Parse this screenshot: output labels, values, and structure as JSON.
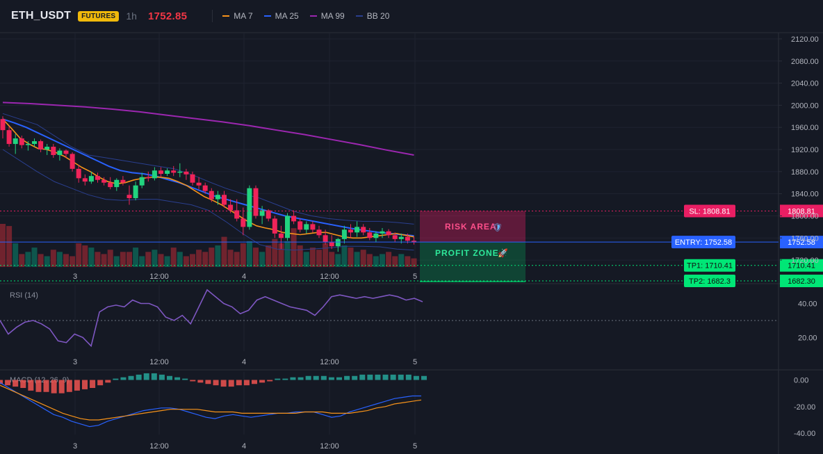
{
  "header": {
    "symbol": "ETH_USDT",
    "market_badge": "FUTURES",
    "timeframe": "1h",
    "last_price": "1752.85",
    "legend": [
      {
        "label": "MA 7",
        "color": "#f7931a"
      },
      {
        "label": "MA 25",
        "color": "#2962ff"
      },
      {
        "label": "MA 99",
        "color": "#9c27b0"
      },
      {
        "label": "BB 20",
        "color": "#2a3f8f"
      }
    ]
  },
  "colors": {
    "up": "#089981",
    "down": "#f23645",
    "up_bright": "#22ab94",
    "down_bright": "#f7525f",
    "rsi": "#7e57c2",
    "macd_line": "#2962ff",
    "signal_line": "#f7931a",
    "hist_up": "#26a69a",
    "hist_down": "#ef5350",
    "stop_loss": "#e91e63",
    "entry": "#2962ff",
    "take_profit": "#00e676"
  },
  "price_axis": {
    "ticks": [
      "2120.00",
      "2080.00",
      "2040.00",
      "2000.00",
      "1960.00",
      "1920.00",
      "1880.00",
      "1840.00",
      "1800.00",
      "1760.00",
      "1720.00"
    ],
    "scale": "linear",
    "grid": true
  },
  "time_axis": {
    "labels": [
      "3",
      "12:00",
      "4",
      "12:00",
      "5"
    ]
  },
  "trade_levels": {
    "stop_loss": {
      "label": "SL: 1808.81",
      "value": "1808.81",
      "price": 1808.81
    },
    "entry": {
      "label": "ENTRY: 1752.58",
      "value": "1752.58",
      "price": 1752.58
    },
    "tp1": {
      "label": "TP1: 1710.41",
      "value": "1710.41",
      "price": 1710.41
    },
    "tp2": {
      "label": "TP2: 1682.3",
      "value": "1682.30",
      "price": 1682.3
    },
    "risk_label": "RISK AREA",
    "profit_label": "PROFIT ZONE"
  },
  "rsi_pane": {
    "title": "RSI (14)",
    "ticks": [
      "40.00",
      "20.00"
    ],
    "values": [
      30,
      22,
      26,
      29,
      30,
      28,
      25,
      18,
      17,
      22,
      20,
      15,
      35,
      38,
      39,
      38,
      42,
      40,
      40,
      38,
      32,
      30,
      33,
      28,
      38,
      48,
      44,
      40,
      38,
      34,
      36,
      42,
      44,
      42,
      40,
      38,
      37,
      36,
      33,
      38,
      44,
      45,
      44,
      43,
      44,
      43,
      44,
      45,
      44,
      42,
      43,
      41
    ]
  },
  "macd_pane": {
    "title": "MACD (12, 26, 9)",
    "ticks": [
      "0.00",
      "-20.00",
      "-40.00"
    ],
    "histogram": [
      -3,
      -4,
      -5,
      -6,
      -8,
      -9,
      -9,
      -10,
      -10,
      -9,
      -8,
      -7,
      -6,
      -4,
      -2,
      1,
      2,
      3,
      4,
      5,
      5,
      4,
      3,
      2,
      1,
      -1,
      -2,
      -3,
      -4,
      -5,
      -5,
      -4,
      -4,
      -3,
      -2,
      -1,
      1,
      1,
      2,
      2,
      3,
      3,
      3,
      2,
      2,
      3,
      3,
      4,
      4,
      4,
      4,
      4,
      4,
      4,
      3,
      3
    ],
    "macd_line": [
      -2,
      -6,
      -10,
      -14,
      -18,
      -22,
      -26,
      -28,
      -31,
      -33,
      -35,
      -34,
      -31,
      -29,
      -27,
      -25,
      -23,
      -22,
      -21,
      -21,
      -22,
      -24,
      -26,
      -28,
      -29,
      -27,
      -26,
      -27,
      -28,
      -27,
      -26,
      -25,
      -25,
      -24,
      -24,
      -24,
      -26,
      -28,
      -27,
      -24,
      -22,
      -20,
      -18,
      -16,
      -14,
      -13,
      -12,
      -12
    ],
    "signal_line": [
      -4,
      -7,
      -10,
      -13,
      -16,
      -19,
      -22,
      -25,
      -27,
      -29,
      -30,
      -30,
      -29,
      -28,
      -27,
      -26,
      -25,
      -24,
      -23,
      -22,
      -22,
      -22,
      -22,
      -23,
      -24,
      -24,
      -24,
      -25,
      -25,
      -25,
      -25,
      -25,
      -25,
      -25,
      -24,
      -24,
      -24,
      -25,
      -25,
      -25,
      -24,
      -23,
      -21,
      -20,
      -18,
      -17,
      -16,
      -15
    ]
  },
  "chart_data": {
    "type": "candlestick",
    "candles": [
      [
        1975,
        1980,
        1940,
        1955
      ],
      [
        1955,
        1962,
        1925,
        1930
      ],
      [
        1930,
        1948,
        1912,
        1940
      ],
      [
        1940,
        1945,
        1922,
        1928
      ],
      [
        1928,
        1935,
        1918,
        1930
      ],
      [
        1930,
        1940,
        1925,
        1935
      ],
      [
        1935,
        1938,
        1915,
        1920
      ],
      [
        1920,
        1930,
        1910,
        1925
      ],
      [
        1925,
        1930,
        1905,
        1910
      ],
      [
        1910,
        1922,
        1900,
        1918
      ],
      [
        1918,
        1920,
        1905,
        1912
      ],
      [
        1912,
        1915,
        1880,
        1885
      ],
      [
        1885,
        1892,
        1860,
        1868
      ],
      [
        1868,
        1875,
        1855,
        1862
      ],
      [
        1862,
        1880,
        1858,
        1872
      ],
      [
        1872,
        1878,
        1860,
        1865
      ],
      [
        1865,
        1870,
        1855,
        1860
      ],
      [
        1860,
        1870,
        1848,
        1852
      ],
      [
        1852,
        1868,
        1845,
        1865
      ],
      [
        1865,
        1872,
        1855,
        1860
      ],
      [
        1838,
        1855,
        1820,
        1832
      ],
      [
        1832,
        1862,
        1828,
        1855
      ],
      [
        1855,
        1878,
        1850,
        1870
      ],
      [
        1870,
        1880,
        1862,
        1868
      ],
      [
        1868,
        1888,
        1864,
        1882
      ],
      [
        1882,
        1888,
        1870,
        1876
      ],
      [
        1876,
        1886,
        1872,
        1882
      ],
      [
        1882,
        1890,
        1872,
        1878
      ],
      [
        1878,
        1895,
        1870,
        1880
      ],
      [
        1880,
        1885,
        1865,
        1875
      ],
      [
        1875,
        1880,
        1855,
        1860
      ],
      [
        1860,
        1870,
        1848,
        1855
      ],
      [
        1855,
        1860,
        1840,
        1845
      ],
      [
        1845,
        1850,
        1825,
        1830
      ],
      [
        1830,
        1845,
        1820,
        1838
      ],
      [
        1838,
        1845,
        1815,
        1820
      ],
      [
        1820,
        1830,
        1805,
        1810
      ],
      [
        1810,
        1830,
        1790,
        1795
      ],
      [
        1795,
        1815,
        1765,
        1780
      ],
      [
        1780,
        1855,
        1775,
        1850
      ],
      [
        1850,
        1855,
        1795,
        1800
      ],
      [
        1800,
        1818,
        1785,
        1810
      ],
      [
        1810,
        1812,
        1790,
        1795
      ],
      [
        1795,
        1800,
        1760,
        1768
      ],
      [
        1768,
        1782,
        1740,
        1760
      ],
      [
        1760,
        1805,
        1755,
        1800
      ],
      [
        1800,
        1810,
        1785,
        1790
      ],
      [
        1790,
        1795,
        1770,
        1775
      ],
      [
        1775,
        1790,
        1768,
        1785
      ],
      [
        1785,
        1790,
        1770,
        1775
      ],
      [
        1775,
        1782,
        1760,
        1765
      ],
      [
        1765,
        1775,
        1748,
        1752
      ],
      [
        1752,
        1765,
        1740,
        1745
      ],
      [
        1745,
        1760,
        1735,
        1758
      ],
      [
        1758,
        1782,
        1750,
        1775
      ],
      [
        1775,
        1785,
        1760,
        1770
      ],
      [
        1770,
        1790,
        1762,
        1780
      ],
      [
        1780,
        1785,
        1765,
        1770
      ],
      [
        1770,
        1778,
        1756,
        1760
      ],
      [
        1760,
        1772,
        1752,
        1768
      ],
      [
        1768,
        1778,
        1760,
        1772
      ],
      [
        1772,
        1776,
        1760,
        1765
      ],
      [
        1765,
        1770,
        1752,
        1758
      ],
      [
        1758,
        1768,
        1750,
        1762
      ],
      [
        1762,
        1768,
        1750,
        1755
      ],
      [
        1755,
        1762,
        1748,
        1752
      ]
    ],
    "volume": [
      40,
      38,
      22,
      12,
      14,
      18,
      12,
      10,
      16,
      14,
      12,
      10,
      22,
      20,
      18,
      14,
      12,
      16,
      10,
      14,
      14,
      18,
      10,
      14,
      16,
      12,
      10,
      18,
      14,
      10,
      12,
      16,
      14,
      18,
      20,
      28,
      16,
      14,
      22,
      24,
      18,
      14,
      20,
      26,
      22,
      24,
      36,
      20,
      14,
      18,
      16,
      22,
      14,
      12,
      20,
      18,
      14,
      16,
      12,
      10,
      12,
      14,
      10,
      12,
      10,
      8
    ],
    "ma7": [
      1975,
      1958,
      1940,
      1930,
      1922,
      1920,
      1915,
      1908,
      1898,
      1888,
      1880,
      1870,
      1862,
      1858,
      1860,
      1865,
      1868,
      1870,
      1870,
      1868,
      1862,
      1855,
      1845,
      1835,
      1828,
      1820,
      1810,
      1800,
      1790,
      1782,
      1778,
      1775,
      1770,
      1768,
      1766,
      1768,
      1770,
      1770,
      1766,
      1762,
      1760,
      1760,
      1762,
      1764,
      1766,
      1768,
      1765,
      1762
    ],
    "ma25": [
      1975,
      1968,
      1960,
      1950,
      1940,
      1930,
      1920,
      1910,
      1900,
      1890,
      1882,
      1878,
      1876,
      1872,
      1866,
      1860,
      1852,
      1844,
      1836,
      1830,
      1824,
      1818,
      1812,
      1806,
      1800,
      1796,
      1792,
      1788,
      1784,
      1780,
      1776,
      1773,
      1770,
      1768,
      1766,
      1764
    ],
    "ma99": [
      2005,
      2003,
      2000,
      1997,
      1993,
      1988,
      1982,
      1976,
      1970,
      1963,
      1955,
      1947,
      1938,
      1929,
      1919,
      1910
    ],
    "bb_upper": [
      1985,
      1975,
      1965,
      1945,
      1925,
      1910,
      1905,
      1900,
      1895,
      1890,
      1885,
      1875,
      1862,
      1850,
      1840,
      1832,
      1820,
      1808,
      1800,
      1795,
      1792,
      1790,
      1790,
      1788,
      1785
    ],
    "bb_lower": [
      1920,
      1900,
      1880,
      1862,
      1850,
      1838,
      1830,
      1828,
      1830,
      1830,
      1825,
      1820,
      1810,
      1790,
      1768,
      1748,
      1740,
      1738,
      1740,
      1742,
      1745,
      1745,
      1744,
      1740,
      1738
    ]
  }
}
